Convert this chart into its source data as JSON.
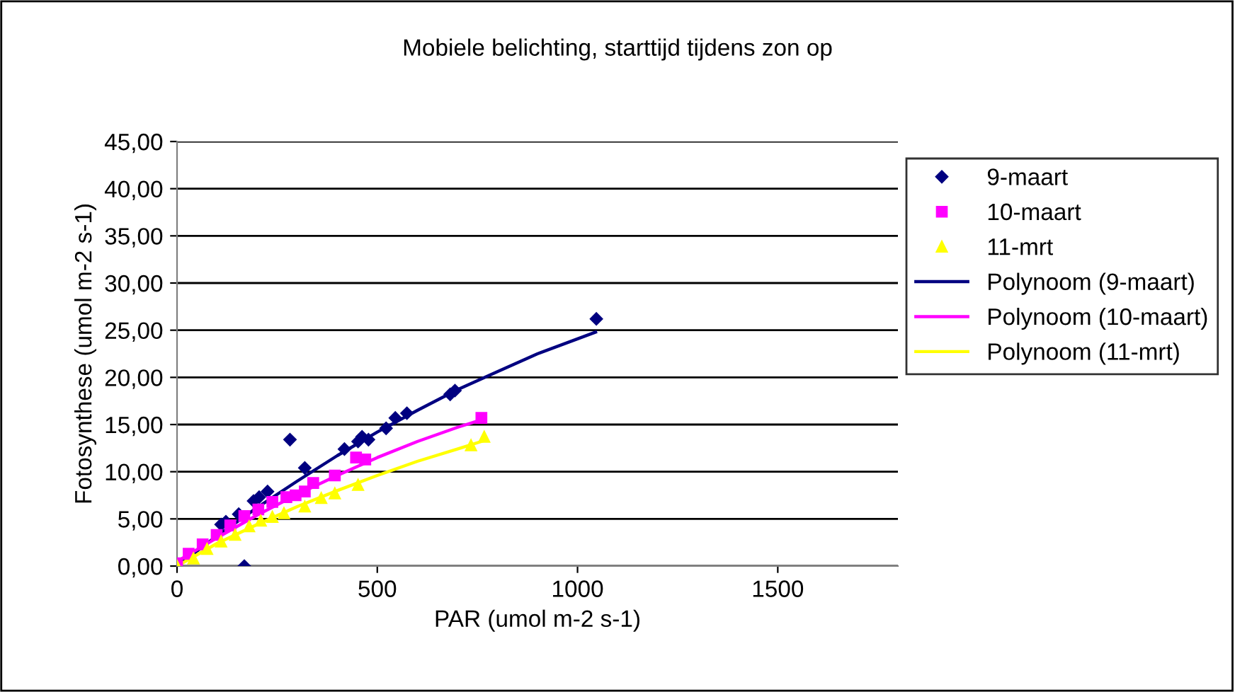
{
  "chart_data": {
    "type": "scatter",
    "title": "Mobiele belichting, starttijd tijdens zon op",
    "xlabel": "PAR (umol m-2 s-1)",
    "ylabel": "Fotosynthese (umol m-2 s-1)",
    "xlim": [
      0,
      1800
    ],
    "xticks": [
      0,
      500,
      1000,
      1500
    ],
    "ylim": [
      0,
      45
    ],
    "yticks": [
      {
        "value": 0,
        "label": "0,00"
      },
      {
        "value": 5,
        "label": "5,00"
      },
      {
        "value": 10,
        "label": "10,00"
      },
      {
        "value": 15,
        "label": "15,00"
      },
      {
        "value": 20,
        "label": "20,00"
      },
      {
        "value": 25,
        "label": "25,00"
      },
      {
        "value": 30,
        "label": "30,00"
      },
      {
        "value": 35,
        "label": "35,00"
      },
      {
        "value": 40,
        "label": "40,00"
      },
      {
        "value": 45,
        "label": "45,00"
      }
    ],
    "grid": "y",
    "legend": "right",
    "series": [
      {
        "name": "9-maart",
        "marker": "diamond",
        "color": "#000080",
        "x": [
          110,
          122,
          154,
          168,
          191,
          205,
          226,
          282,
          319,
          418,
          452,
          462,
          478,
          522,
          545,
          574,
          682,
          694,
          1047
        ],
        "values": [
          4.4,
          4.7,
          5.5,
          0,
          6.9,
          7.3,
          7.9,
          13.4,
          10.4,
          12.4,
          13.2,
          13.7,
          13.4,
          14.6,
          15.7,
          16.2,
          18.2,
          18.6,
          26.2
        ]
      },
      {
        "name": "10-maart",
        "marker": "square",
        "color": "#ff00ff",
        "x": [
          0,
          29,
          64,
          99,
          133,
          168,
          203,
          238,
          273,
          296,
          319,
          340,
          394,
          447,
          470,
          760
        ],
        "values": [
          0.3,
          1.3,
          2.3,
          3.3,
          4.3,
          5.3,
          6.0,
          6.8,
          7.3,
          7.5,
          7.9,
          8.8,
          9.6,
          11.5,
          11.3,
          15.7
        ]
      },
      {
        "name": "11-mrt",
        "marker": "triangle",
        "color": "#ffff00",
        "x": [
          0,
          41,
          75,
          110,
          145,
          180,
          209,
          238,
          267,
          319,
          360,
          394,
          452,
          734,
          767
        ],
        "values": [
          0,
          0.8,
          1.8,
          2.6,
          3.3,
          4.2,
          4.8,
          5.2,
          5.6,
          6.3,
          7.2,
          7.7,
          8.6,
          12.8,
          13.7
        ]
      },
      {
        "name": "Polynoom (9-maart)",
        "type": "line",
        "color": "#000080",
        "x": [
          0,
          100,
          200,
          300,
          400,
          500,
          600,
          700,
          800,
          900,
          1045
        ],
        "values": [
          0,
          3.2,
          6.2,
          9.0,
          11.7,
          14.2,
          16.5,
          18.7,
          20.6,
          22.5,
          24.8
        ]
      },
      {
        "name": "Polynoom (10-maart)",
        "type": "line",
        "color": "#ff00ff",
        "x": [
          0,
          100,
          200,
          300,
          400,
          500,
          600,
          700,
          760
        ],
        "values": [
          0.5,
          3.0,
          5.4,
          7.6,
          9.6,
          11.5,
          13.2,
          14.7,
          15.5
        ]
      },
      {
        "name": "Polynoom (11-mrt)",
        "type": "line",
        "color": "#ffff00",
        "x": [
          0,
          100,
          200,
          300,
          400,
          500,
          600,
          700,
          767
        ],
        "values": [
          0,
          2.4,
          4.4,
          6.3,
          8.0,
          9.6,
          11.1,
          12.4,
          13.3
        ]
      }
    ]
  }
}
